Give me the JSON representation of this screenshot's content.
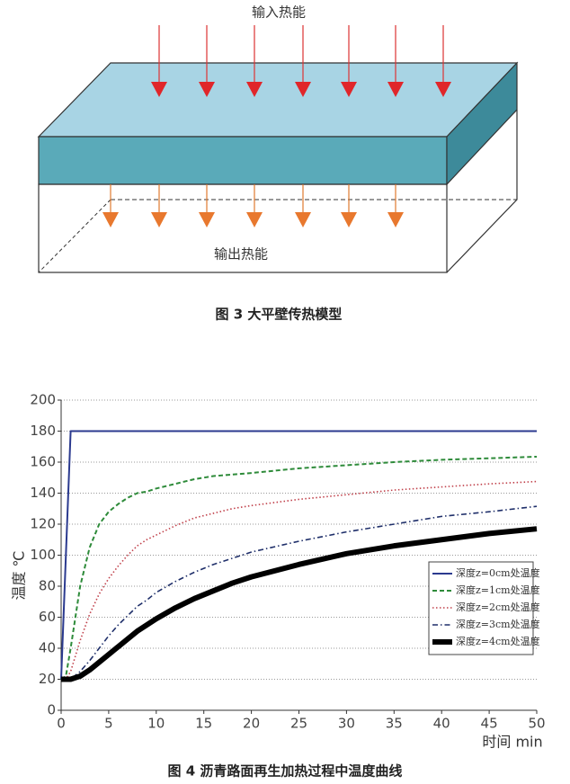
{
  "diagram": {
    "input_label": "输入热能",
    "output_label": "输出热能",
    "caption": "图 3  大平壁传热模型"
  },
  "chart_data": {
    "type": "line",
    "caption": "图 4  沥青路面再生加热过程中温度曲线",
    "x_label": "时间 min",
    "y_label": "温度 ℃",
    "x": [
      0,
      0.5,
      1,
      2,
      3,
      4,
      5,
      6,
      7,
      8,
      9,
      10,
      12,
      14,
      16,
      18,
      20,
      25,
      30,
      35,
      40,
      45,
      50
    ],
    "series": [
      {
        "name": "深度z=0cm处温度",
        "color": "#2b3a8f",
        "line_style": "solid",
        "values": [
          20,
          100,
          180,
          180,
          180,
          180,
          180,
          180,
          180,
          180,
          180,
          180,
          180,
          180,
          180,
          180,
          180,
          180,
          180,
          180,
          180,
          180,
          180
        ]
      },
      {
        "name": "深度z=1cm处温度",
        "color": "#2e8b3a",
        "line_style": "dashed",
        "values": [
          20,
          22,
          40,
          80,
          105,
          120,
          128,
          133,
          137,
          140,
          141,
          143,
          146,
          149,
          151,
          152,
          153,
          156,
          158,
          160,
          161.5,
          162.5,
          163.5
        ]
      },
      {
        "name": "深度z=2cm处温度",
        "color": "#c0404a",
        "line_style": "dotted",
        "values": [
          20,
          20,
          25,
          45,
          62,
          75,
          85,
          93,
          100,
          106,
          110,
          113,
          119,
          124,
          127,
          130,
          132,
          136,
          139,
          142,
          144,
          146,
          147.5
        ]
      },
      {
        "name": "深度z=3cm处温度",
        "color": "#1f2f6a",
        "line_style": "dash-dot",
        "values": [
          20,
          20,
          20,
          25,
          32,
          40,
          48,
          55,
          61,
          67,
          71,
          76,
          83,
          89,
          94,
          98,
          102,
          109,
          115,
          120,
          125,
          128,
          131.5
        ]
      },
      {
        "name": "深度z=4cm处温度",
        "color": "#000000",
        "line_style": "bold",
        "values": [
          20,
          20,
          20,
          22,
          26,
          31,
          36,
          41,
          46,
          51,
          55,
          59,
          66,
          72,
          77,
          82,
          86,
          94,
          101,
          106,
          110,
          114,
          117
        ]
      }
    ],
    "xlim": [
      0,
      50
    ],
    "xticks": [
      0,
      5,
      10,
      15,
      20,
      25,
      30,
      35,
      40,
      45,
      50
    ],
    "ylim": [
      0,
      200
    ],
    "yticks": [
      0,
      20,
      40,
      60,
      80,
      100,
      120,
      140,
      160,
      180,
      200
    ],
    "grid": true,
    "legend": "lower right"
  }
}
